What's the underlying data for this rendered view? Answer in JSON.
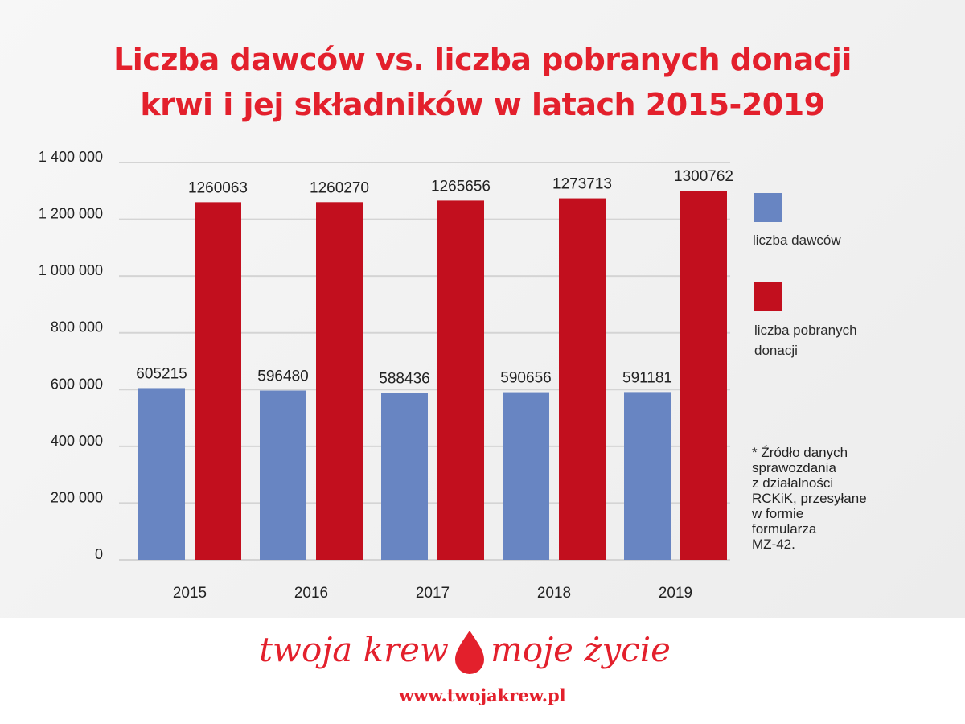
{
  "title": {
    "line1": "Liczba dawców vs. liczba pobranych donacji",
    "line2": "krwi i jej składników w latach 2015-2019"
  },
  "chart_data": {
    "type": "bar",
    "categories": [
      "2015",
      "2016",
      "2017",
      "2018",
      "2019"
    ],
    "series": [
      {
        "name": "liczba dawców",
        "color": "#6885c2",
        "values": [
          605215,
          596480,
          588436,
          590656,
          591181
        ]
      },
      {
        "name": "liczba pobranych donacji",
        "color": "#c20f1e",
        "values": [
          1260063,
          1260270,
          1265656,
          1273713,
          1300762
        ]
      }
    ],
    "ylim": [
      0,
      1400000
    ],
    "yticks": [
      0,
      200000,
      400000,
      600000,
      800000,
      1000000,
      1200000,
      1400000
    ],
    "ytick_labels": [
      "0",
      "200 000",
      "400 000",
      "600 000",
      "800 000",
      "1 000 000",
      "1 200 000",
      "1 400 000"
    ],
    "grid": true,
    "legend_position": "right"
  },
  "legend": {
    "donors_label": "liczba dawców",
    "donations_label_line1": "liczba pobranych",
    "donations_label_line2": "donacji"
  },
  "note": {
    "lines": [
      "* Źródło danych",
      "sprawozdania",
      "z działalności",
      "RCKiK, przesyłane",
      "w formie",
      "formularza",
      "MZ-42."
    ]
  },
  "brand": {
    "slogan_left": "twoja krew",
    "slogan_right": "moje życie",
    "url": "www.twojakrew.pl"
  }
}
